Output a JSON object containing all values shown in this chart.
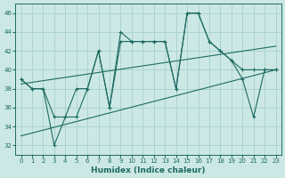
{
  "xlabel": "Humidex (Indice chaleur)",
  "xlim": [
    -0.5,
    23.5
  ],
  "ylim": [
    31,
    47
  ],
  "yticks": [
    32,
    34,
    36,
    38,
    40,
    42,
    44,
    46
  ],
  "xticks": [
    0,
    1,
    2,
    3,
    4,
    5,
    6,
    7,
    8,
    9,
    10,
    11,
    12,
    13,
    14,
    15,
    16,
    17,
    18,
    19,
    20,
    21,
    22,
    23
  ],
  "background_color": "#cce8e5",
  "grid_color": "#aad4d0",
  "line_color": "#1e6b62",
  "series": [
    {
      "x": [
        0,
        1,
        2,
        3,
        4,
        5,
        6,
        7,
        8,
        9,
        10,
        11,
        12,
        13,
        14,
        15,
        16,
        17,
        18,
        19,
        20,
        21,
        22,
        23
      ],
      "y": [
        39,
        38,
        38,
        35,
        35,
        38,
        38,
        42,
        36,
        43,
        43,
        43,
        43,
        43,
        38,
        46,
        46,
        43,
        42,
        41,
        40,
        40,
        40,
        40
      ]
    },
    {
      "x": [
        0,
        1,
        2,
        3,
        4,
        5,
        6,
        7,
        8,
        9,
        10,
        11,
        12,
        13,
        14,
        15,
        16,
        17,
        18,
        19,
        20,
        21,
        22,
        23
      ],
      "y": [
        39,
        38,
        38,
        32,
        35,
        35,
        38,
        42,
        36,
        44,
        43,
        43,
        43,
        43,
        38,
        46,
        46,
        43,
        42,
        41,
        39,
        35,
        40,
        40
      ]
    },
    {
      "x": [
        0,
        23
      ],
      "y": [
        38.5,
        42.5
      ]
    },
    {
      "x": [
        0,
        23
      ],
      "y": [
        33,
        40
      ]
    }
  ],
  "figsize": [
    3.2,
    2.0
  ],
  "dpi": 100
}
